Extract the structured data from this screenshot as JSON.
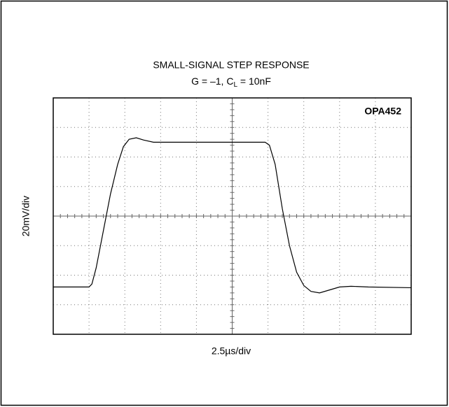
{
  "chart_data": {
    "type": "line",
    "title": "SMALL-SIGNAL STEP RESPONSE",
    "subtitle_parts": [
      "G = –1, C",
      "L",
      " = 10nF"
    ],
    "annotation": "OPA452",
    "xlabel": "2.5µs/div",
    "ylabel": "20mV/div",
    "xlim": [
      0,
      25
    ],
    "ylim": [
      -80,
      80
    ],
    "xticks": [
      0,
      2.5,
      5,
      7.5,
      10,
      12.5,
      15,
      17.5,
      20,
      22.5,
      25
    ],
    "yticks": [
      -80,
      -60,
      -40,
      -20,
      0,
      20,
      40,
      60,
      80
    ],
    "grid": true,
    "series": [
      {
        "color": "#000000",
        "x": [
          0,
          2.5,
          2.7,
          3.0,
          3.5,
          4.0,
          4.5,
          4.9,
          5.3,
          5.8,
          6.3,
          7.0,
          10,
          14.8,
          15.1,
          15.5,
          16.0,
          16.5,
          17.0,
          17.5,
          18.0,
          18.6,
          19.3,
          20.0,
          20.8,
          22,
          25
        ],
        "values": [
          -48,
          -48,
          -46,
          -35,
          -10,
          15,
          35,
          47,
          52,
          53,
          51.5,
          50,
          50,
          50,
          48,
          35,
          5,
          -20,
          -38,
          -47,
          -51,
          -52,
          -50,
          -48,
          -47.5,
          -48,
          -48.5
        ]
      }
    ]
  }
}
